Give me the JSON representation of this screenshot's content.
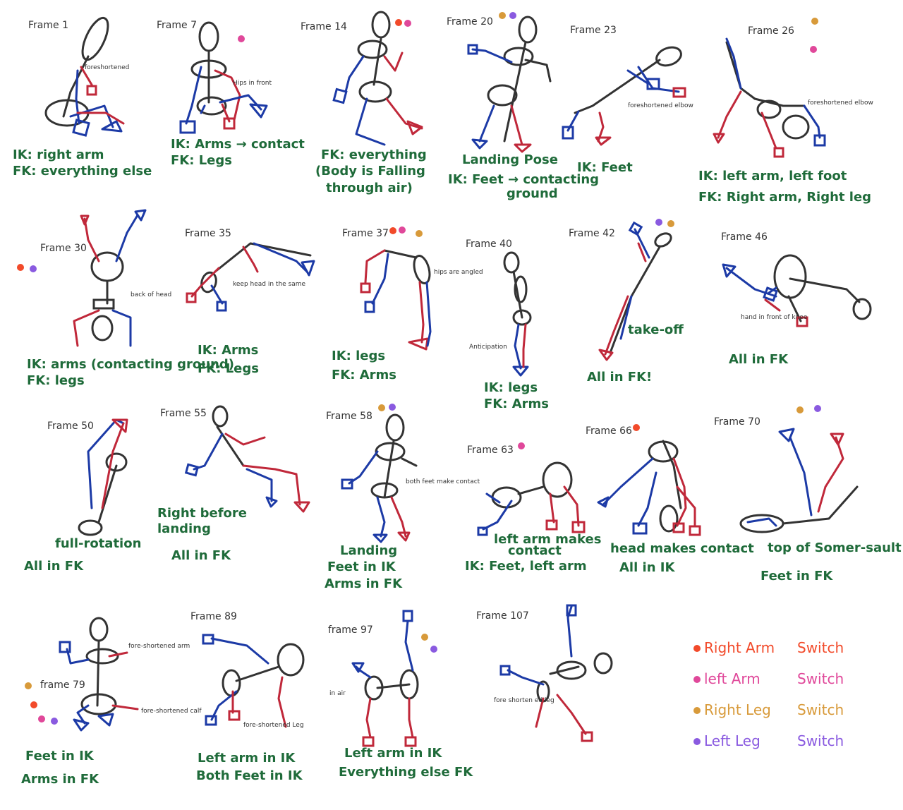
{
  "colors": {
    "body": "#333333",
    "right_side": "#c0283a",
    "left_side": "#1c3aa6",
    "caption": "#1f6b3a",
    "right_arm_switch": "#f24a2a",
    "left_arm_switch": "#e0489a",
    "right_leg_switch": "#d89a3a",
    "left_leg_switch": "#8a5ae0"
  },
  "panels": [
    {
      "frame": "Frame 1",
      "captions": [
        "IK: right arm",
        "FK: everything else"
      ],
      "notes": [
        "foreshortened"
      ],
      "dots": []
    },
    {
      "frame": "Frame 7",
      "captions": [
        "IK: Arms → contact",
        "FK: Legs"
      ],
      "notes": [
        "Hips in front"
      ],
      "dots": [
        "left_arm_switch"
      ]
    },
    {
      "frame": "Frame 14",
      "captions": [
        "FK: everything",
        "(Body is Falling",
        "through air)"
      ],
      "notes": [],
      "dots": [
        "right_arm_switch",
        "left_arm_switch"
      ]
    },
    {
      "frame": "Frame 20",
      "captions": [
        "Landing Pose",
        "IK: Feet → contacting",
        "ground"
      ],
      "notes": [],
      "dots": [
        "right_leg_switch",
        "left_leg_switch"
      ]
    },
    {
      "frame": "Frame 23",
      "captions": [
        "IK: Feet"
      ],
      "notes": [
        "foreshortened elbow"
      ],
      "dots": []
    },
    {
      "frame": "Frame 26",
      "captions": [
        "IK: left arm, left foot",
        "FK: Right arm, Right leg"
      ],
      "notes": [
        "foreshortened elbow"
      ],
      "dots": [
        "right_leg_switch",
        "left_arm_switch"
      ]
    },
    {
      "frame": "Frame 30",
      "captions": [
        "IK: arms (contacting ground)",
        "FK: legs"
      ],
      "notes": [
        "back of head"
      ],
      "dots": [
        "right_arm_switch",
        "left_leg_switch"
      ]
    },
    {
      "frame": "Frame 35",
      "captions": [
        "IK: Arms",
        "FK: Legs"
      ],
      "notes": [
        "keep head in the same"
      ],
      "dots": []
    },
    {
      "frame": "Frame 37",
      "captions": [
        "IK: legs",
        "FK: Arms"
      ],
      "notes": [
        "hips are angled"
      ],
      "dots": [
        "right_arm_switch",
        "left_arm_switch",
        "right_leg_switch"
      ]
    },
    {
      "frame": "Frame 40",
      "captions": [
        "IK: legs",
        "FK: Arms"
      ],
      "notes": [
        "Anticipation"
      ],
      "dots": []
    },
    {
      "frame": "Frame 42",
      "captions": [
        "take-off",
        "All in FK!"
      ],
      "notes": [],
      "dots": [
        "left_leg_switch",
        "right_leg_switch"
      ]
    },
    {
      "frame": "Frame 46",
      "captions": [
        "All in FK"
      ],
      "notes": [
        "hand in front of knee"
      ],
      "dots": []
    },
    {
      "frame": "Frame 50",
      "captions": [
        "full-rotation",
        "All in FK"
      ],
      "notes": [],
      "dots": []
    },
    {
      "frame": "Frame 55",
      "captions": [
        "Right before",
        "landing",
        "All in FK"
      ],
      "notes": [],
      "dots": []
    },
    {
      "frame": "Frame 58",
      "captions": [
        "Landing",
        "Feet in IK",
        "Arms in FK"
      ],
      "notes": [
        "both feet make contact"
      ],
      "dots": [
        "right_leg_switch",
        "left_leg_switch"
      ]
    },
    {
      "frame": "Frame 63",
      "captions": [
        "left arm makes",
        "contact",
        "IK: Feet, left arm"
      ],
      "notes": [],
      "dots": [
        "left_arm_switch"
      ]
    },
    {
      "frame": "Frame 66",
      "captions": [
        "head makes contact",
        "All in IK"
      ],
      "notes": [],
      "dots": [
        "right_arm_switch"
      ]
    },
    {
      "frame": "Frame 70",
      "captions": [
        "top of Somer-sault",
        "Feet in FK"
      ],
      "notes": [],
      "dots": [
        "right_leg_switch",
        "left_leg_switch"
      ]
    },
    {
      "frame": "frame 79",
      "captions": [
        "Feet in IK",
        "Arms in FK"
      ],
      "notes": [
        "fore-shortened arm",
        "fore-shortened calf"
      ],
      "dots": [
        "right_leg_switch",
        "right_arm_switch",
        "left_arm_switch",
        "left_leg_switch"
      ]
    },
    {
      "frame": "Frame 89",
      "captions": [
        "Left arm in IK",
        "Both Feet in IK"
      ],
      "notes": [
        "fore-shortened Leg"
      ],
      "dots": []
    },
    {
      "frame": "frame 97",
      "captions": [
        "Left arm in IK",
        "Everything else FK"
      ],
      "notes": [
        "in air"
      ],
      "dots": [
        "right_leg_switch",
        "left_leg_switch"
      ]
    },
    {
      "frame": "Frame 107",
      "captions": [],
      "notes": [
        "fore shorten ed leg"
      ],
      "dots": []
    }
  ],
  "legend": [
    {
      "label": "Right Arm",
      "action": "Switch",
      "color_key": "right_arm_switch"
    },
    {
      "label": "left Arm",
      "action": "Switch",
      "color_key": "left_arm_switch"
    },
    {
      "label": "Right Leg",
      "action": "Switch",
      "color_key": "right_leg_switch"
    },
    {
      "label": "Left Leg",
      "action": "Switch",
      "color_key": "left_leg_switch"
    }
  ]
}
